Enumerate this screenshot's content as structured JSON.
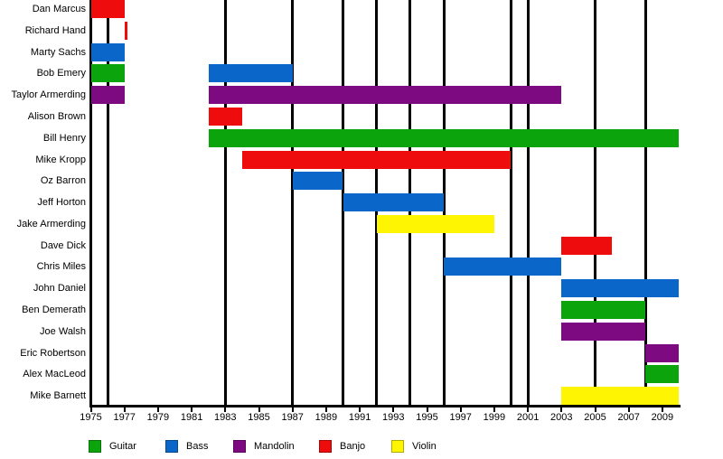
{
  "chart_data": {
    "type": "bar",
    "subtype": "gantt-band-membership-timeline",
    "title": "",
    "xlabel": "",
    "ylabel": "",
    "grid": "vertical event lines only",
    "legend_position": "bottom",
    "x_axis": {
      "min": 1975,
      "max": 2010,
      "tick_years": [
        1975,
        1977,
        1979,
        1981,
        1983,
        1985,
        1987,
        1989,
        1991,
        1993,
        1995,
        1997,
        1999,
        2001,
        2003,
        2005,
        2007,
        2009
      ]
    },
    "event_line_years": [
      1976,
      1983,
      1987,
      1990,
      1992,
      1994,
      1996,
      2000,
      2001,
      2005,
      2008
    ],
    "legend": [
      {
        "label": "Guitar",
        "color": "#0CA40C"
      },
      {
        "label": "Bass",
        "color": "#0A67C9"
      },
      {
        "label": "Mandolin",
        "color": "#7D0A80"
      },
      {
        "label": "Banjo",
        "color": "#EE0C0C"
      },
      {
        "label": "Violin",
        "color": "#FDF501"
      }
    ],
    "members": [
      {
        "name": "Dan Marcus",
        "stints": [
          {
            "instrument": "Banjo",
            "start": 1975,
            "end": 1977
          }
        ]
      },
      {
        "name": "Richard Hand",
        "stints": [
          {
            "instrument": "Banjo",
            "start": 1977,
            "end": 1977
          }
        ]
      },
      {
        "name": "Marty Sachs",
        "stints": [
          {
            "instrument": "Bass",
            "start": 1975,
            "end": 1977
          }
        ]
      },
      {
        "name": "Bob Emery",
        "stints": [
          {
            "instrument": "Guitar",
            "start": 1975,
            "end": 1977
          },
          {
            "instrument": "Bass",
            "start": 1982,
            "end": 1987
          }
        ]
      },
      {
        "name": "Taylor Armerding",
        "stints": [
          {
            "instrument": "Mandolin",
            "start": 1975,
            "end": 1977
          },
          {
            "instrument": "Mandolin",
            "start": 1982,
            "end": 2003
          }
        ]
      },
      {
        "name": "Alison Brown",
        "stints": [
          {
            "instrument": "Banjo",
            "start": 1982,
            "end": 1984
          }
        ]
      },
      {
        "name": "Bill Henry",
        "stints": [
          {
            "instrument": "Guitar",
            "start": 1982,
            "end": 2010
          }
        ]
      },
      {
        "name": "Mike Kropp",
        "stints": [
          {
            "instrument": "Banjo",
            "start": 1984,
            "end": 2000
          }
        ]
      },
      {
        "name": "Oz Barron",
        "stints": [
          {
            "instrument": "Bass",
            "start": 1987,
            "end": 1990
          }
        ]
      },
      {
        "name": "Jeff Horton",
        "stints": [
          {
            "instrument": "Bass",
            "start": 1990,
            "end": 1996
          }
        ]
      },
      {
        "name": "Jake Armerding",
        "stints": [
          {
            "instrument": "Violin",
            "start": 1992,
            "end": 1999
          }
        ]
      },
      {
        "name": "Dave Dick",
        "stints": [
          {
            "instrument": "Banjo",
            "start": 2003,
            "end": 2006
          }
        ]
      },
      {
        "name": "Chris Miles",
        "stints": [
          {
            "instrument": "Bass",
            "start": 1996,
            "end": 2003
          }
        ]
      },
      {
        "name": "John Daniel",
        "stints": [
          {
            "instrument": "Bass",
            "start": 2003,
            "end": 2010
          }
        ]
      },
      {
        "name": "Ben Demerath",
        "stints": [
          {
            "instrument": "Guitar",
            "start": 2003,
            "end": 2008
          }
        ]
      },
      {
        "name": "Joe Walsh",
        "stints": [
          {
            "instrument": "Mandolin",
            "start": 2003,
            "end": 2008
          }
        ]
      },
      {
        "name": "Eric Robertson",
        "stints": [
          {
            "instrument": "Mandolin",
            "start": 2008,
            "end": 2010
          }
        ]
      },
      {
        "name": "Alex MacLeod",
        "stints": [
          {
            "instrument": "Guitar",
            "start": 2008,
            "end": 2010
          }
        ]
      },
      {
        "name": "Mike Barnett",
        "stints": [
          {
            "instrument": "Violin",
            "start": 2003,
            "end": 2010
          }
        ]
      }
    ]
  }
}
